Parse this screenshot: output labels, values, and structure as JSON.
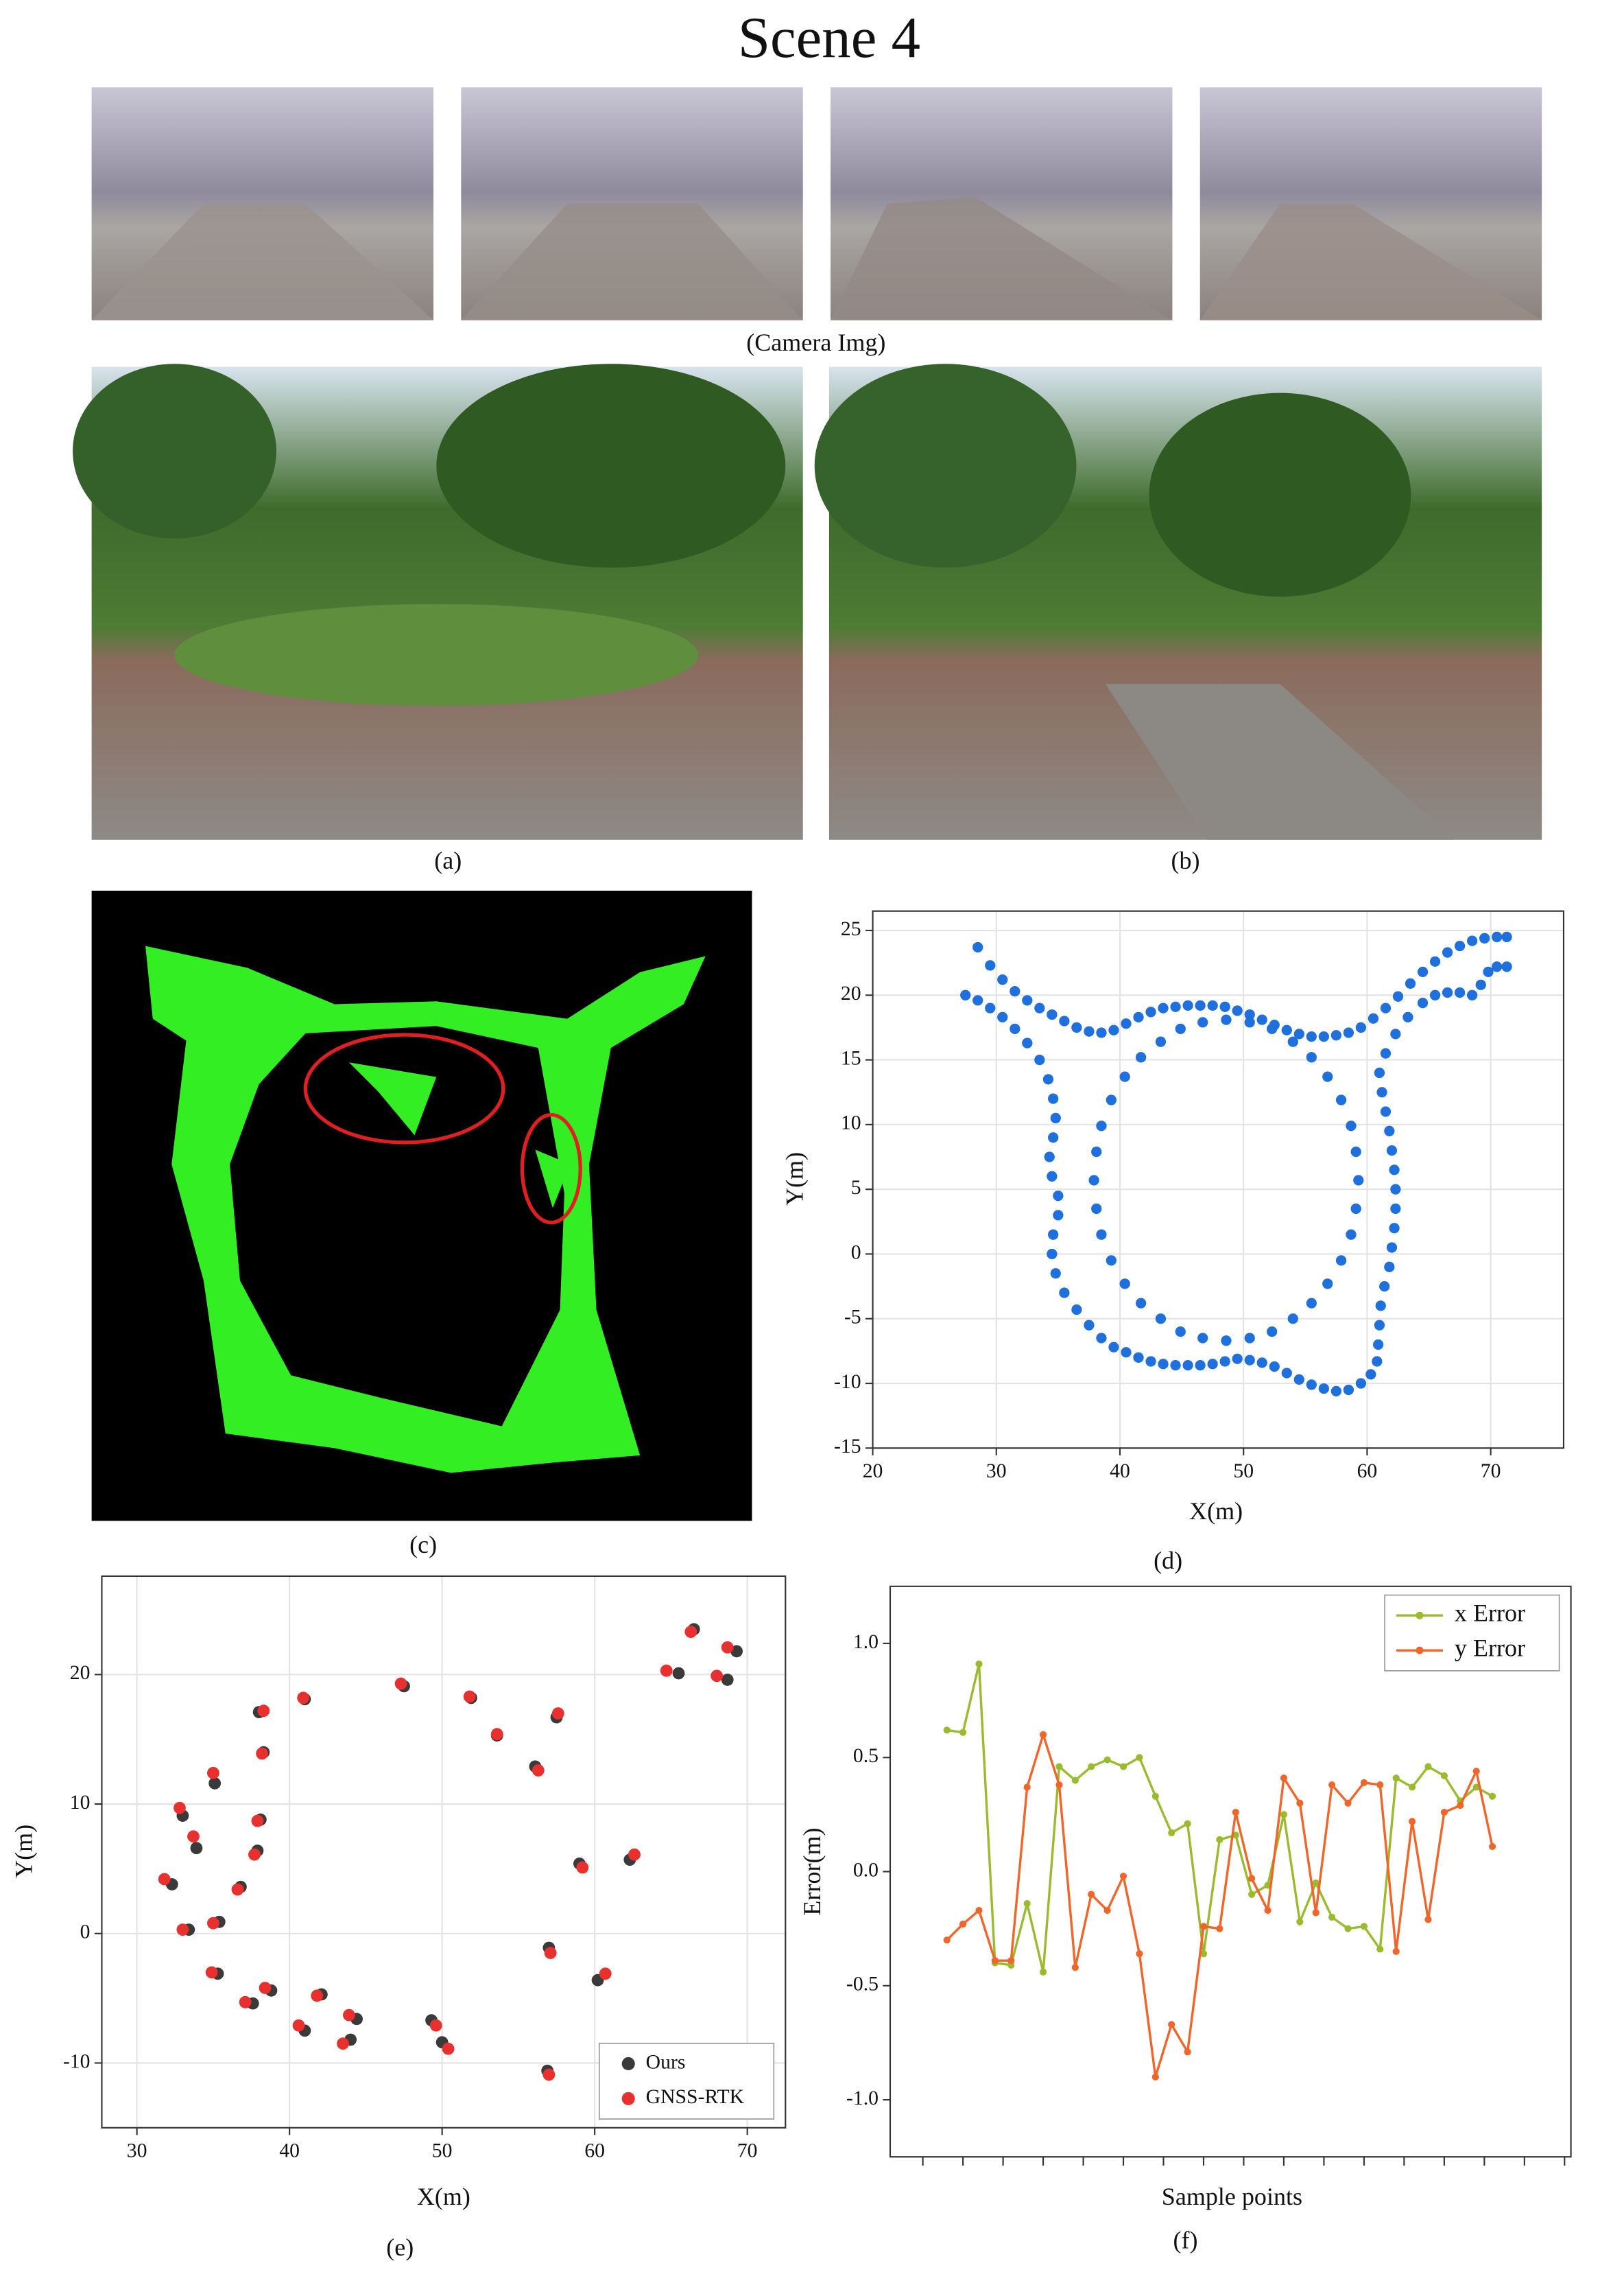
{
  "title": "Scene 4",
  "captions": {
    "camera": "(Camera Img)",
    "a": "(a)",
    "b": "(b)",
    "c": "(c)",
    "d": "(d)",
    "e": "(e)",
    "f": "(f)"
  },
  "chart_data": [
    {
      "type": "scatter",
      "x_label": "X(m)",
      "y_label": "Y(m)",
      "color": "#1f6fdc",
      "x": [
        28.5,
        29.5,
        30.5,
        31.5,
        32.5,
        33.5,
        34.5,
        35.5,
        36.5,
        37.5,
        38.5,
        39.5,
        40.5,
        41.5,
        42.5,
        43.5,
        44.5,
        45.5,
        46.5,
        47.5,
        48.5,
        49.5,
        50.5,
        51.5,
        52.5,
        53.5,
        54.5,
        55.5,
        56.5,
        57.5,
        58.5,
        59.5,
        60.5,
        61.5,
        62.5,
        63.5,
        64.5,
        65.5,
        66.5,
        67.5,
        68.5,
        69.5,
        70.5,
        71.3,
        59.3,
        59.1,
        58.7,
        57.9,
        56.8,
        55.5,
        54.0,
        52.3,
        50.5,
        48.6,
        46.7,
        44.9,
        43.3,
        41.7,
        40.4,
        39.3,
        38.5,
        38.1,
        37.9,
        38.1,
        38.5,
        39.3,
        40.4,
        41.7,
        43.3,
        44.9,
        46.7,
        48.6,
        50.5,
        52.3,
        54.0,
        55.5,
        56.8,
        57.9,
        58.7,
        59.1,
        27.5,
        28.5,
        29.5,
        30.5,
        31.5,
        32.5,
        33.5,
        34.2,
        34.6,
        34.8,
        34.6,
        34.3,
        34.5,
        35.0,
        35.0,
        34.6,
        34.5,
        34.8,
        35.5,
        36.5,
        37.5,
        38.5,
        39.5,
        40.5,
        41.5,
        42.5,
        43.5,
        44.5,
        45.5,
        46.5,
        47.5,
        48.5,
        49.5,
        50.5,
        51.5,
        52.5,
        53.5,
        54.5,
        55.5,
        56.5,
        57.5,
        58.5,
        59.5,
        60.3,
        60.8,
        60.9,
        61.0,
        61.1,
        61.4,
        61.8,
        62.0,
        62.2,
        62.3,
        62.3,
        62.2,
        62.0,
        61.8,
        61.5,
        61.2,
        61.0,
        61.5,
        62.3,
        63.3,
        64.5,
        65.5,
        66.5,
        67.5,
        68.5,
        69.2,
        69.8,
        70.5,
        71.3
      ],
      "y": [
        23.7,
        22.3,
        21.2,
        20.3,
        19.6,
        19.0,
        18.5,
        18.0,
        17.5,
        17.2,
        17.1,
        17.3,
        17.8,
        18.3,
        18.7,
        19.0,
        19.1,
        19.2,
        19.2,
        19.2,
        19.1,
        18.8,
        18.5,
        18.1,
        17.7,
        17.3,
        17.0,
        16.8,
        16.8,
        16.9,
        17.1,
        17.5,
        18.2,
        19.0,
        19.9,
        20.9,
        21.8,
        22.6,
        23.3,
        23.8,
        24.2,
        24.4,
        24.5,
        24.5,
        5.7,
        7.9,
        9.9,
        11.9,
        13.7,
        15.2,
        16.4,
        17.4,
        17.9,
        18.1,
        17.9,
        17.4,
        16.4,
        15.2,
        13.7,
        11.9,
        9.9,
        7.9,
        5.7,
        3.5,
        1.5,
        -0.5,
        -2.3,
        -3.8,
        -5.0,
        -6.0,
        -6.5,
        -6.7,
        -6.5,
        -6.0,
        -5.0,
        -3.8,
        -2.3,
        -0.5,
        1.5,
        3.5,
        20.0,
        19.6,
        19.0,
        18.3,
        17.4,
        16.3,
        15.0,
        13.5,
        12.0,
        10.5,
        9.0,
        7.5,
        6.0,
        4.5,
        3.0,
        1.5,
        0.0,
        -1.5,
        -3.0,
        -4.3,
        -5.5,
        -6.5,
        -7.2,
        -7.6,
        -8.0,
        -8.3,
        -8.5,
        -8.6,
        -8.6,
        -8.6,
        -8.5,
        -8.3,
        -8.1,
        -8.2,
        -8.4,
        -8.7,
        -9.2,
        -9.7,
        -10.1,
        -10.4,
        -10.6,
        -10.5,
        -10.0,
        -9.3,
        -8.3,
        -7.0,
        -5.5,
        -4.0,
        -2.5,
        -1.0,
        0.5,
        2.0,
        3.5,
        5.0,
        6.5,
        8.0,
        9.5,
        11.0,
        12.5,
        14.0,
        15.5,
        17.0,
        18.3,
        19.4,
        20.0,
        20.2,
        20.2,
        20.0,
        20.8,
        21.8,
        22.2,
        22.2
      ],
      "xlim": [
        20,
        75.9
      ],
      "ylim": [
        -15,
        26.5
      ],
      "xticks": [
        20,
        30,
        40,
        50,
        60,
        70
      ],
      "yticks": [
        -15,
        -10,
        -5,
        0,
        5,
        10,
        15,
        20,
        25
      ],
      "grid": true
    },
    {
      "type": "scatter",
      "x_label": "X(m)",
      "y_label": "Y(m)",
      "series": [
        {
          "name": "Ours",
          "color": "#3a3a3a",
          "x": [
            66.5,
            69.3,
            65.5,
            68.7,
            47.5,
            41.0,
            51.9,
            38.0,
            57.5,
            53.6,
            38.3,
            56.1,
            35.1,
            33.0,
            38.1,
            33.9,
            37.9,
            59.0,
            62.3,
            32.3,
            36.8,
            35.4,
            33.4,
            57.0,
            60.2,
            35.3,
            37.6,
            38.8,
            42.1,
            44.4,
            41.0,
            49.3,
            44.0,
            50.0,
            56.9
          ],
          "y": [
            23.5,
            21.8,
            20.1,
            19.6,
            19.1,
            18.1,
            18.2,
            17.1,
            16.7,
            15.3,
            14.0,
            12.9,
            11.6,
            9.1,
            8.8,
            6.6,
            6.4,
            5.4,
            5.7,
            3.8,
            3.6,
            0.9,
            0.3,
            -1.1,
            -3.6,
            -3.1,
            -5.4,
            -4.4,
            -4.7,
            -6.6,
            -7.5,
            -6.7,
            -8.2,
            -8.4,
            -10.6
          ]
        },
        {
          "name": "GNSS-RTK",
          "color": "#e8302f",
          "x": [
            66.3,
            68.7,
            64.7,
            68.0,
            47.3,
            40.9,
            51.8,
            38.3,
            57.6,
            53.6,
            38.2,
            56.3,
            35.0,
            32.8,
            37.9,
            33.7,
            37.7,
            59.2,
            62.6,
            31.8,
            36.6,
            35.0,
            33.0,
            57.1,
            60.7,
            34.9,
            37.1,
            38.4,
            41.8,
            43.9,
            40.6,
            49.6,
            43.5,
            50.4,
            57.0
          ],
          "y": [
            23.3,
            22.1,
            20.3,
            19.9,
            19.3,
            18.2,
            18.3,
            17.2,
            17.0,
            15.4,
            13.9,
            12.6,
            12.4,
            9.7,
            8.7,
            7.5,
            6.1,
            5.1,
            6.1,
            4.2,
            3.4,
            0.8,
            0.3,
            -1.5,
            -3.1,
            -3.0,
            -5.3,
            -4.2,
            -4.8,
            -6.3,
            -7.1,
            -7.1,
            -8.5,
            -8.9,
            -10.9
          ]
        }
      ],
      "xlim": [
        27.7,
        72.5
      ],
      "ylim": [
        -15,
        27.6
      ],
      "xticks": [
        30,
        40,
        50,
        60,
        70
      ],
      "yticks": [
        -10,
        0,
        10,
        20
      ],
      "grid": true,
      "legend": "lower right"
    },
    {
      "type": "line",
      "x_label": "Sample points",
      "y_label": "Error(m)",
      "series": [
        {
          "name": "x Error",
          "color": "#9bbb2f",
          "values": [
            0.62,
            0.61,
            0.91,
            -0.4,
            -0.41,
            -0.14,
            -0.44,
            0.46,
            0.4,
            0.46,
            0.49,
            0.46,
            0.5,
            0.33,
            0.17,
            0.21,
            -0.36,
            0.14,
            0.16,
            -0.1,
            -0.06,
            0.25,
            -0.22,
            -0.05,
            -0.2,
            -0.25,
            -0.24,
            -0.34,
            0.41,
            0.37,
            0.46,
            0.42,
            0.31,
            0.37,
            0.33
          ]
        },
        {
          "name": "y Error",
          "color": "#f0652a",
          "values": [
            -0.3,
            -0.23,
            -0.17,
            -0.39,
            -0.39,
            0.37,
            0.6,
            0.38,
            -0.42,
            -0.1,
            -0.17,
            -0.02,
            -0.36,
            -0.9,
            -0.67,
            -0.79,
            -0.24,
            -0.25,
            0.26,
            -0.03,
            -0.17,
            0.41,
            0.3,
            -0.18,
            0.38,
            0.3,
            0.39,
            0.38,
            -0.35,
            0.22,
            -0.21,
            0.26,
            0.29,
            0.44,
            0.11
          ]
        }
      ],
      "ylim": [
        -1.25,
        1.25
      ],
      "yticks": [
        {
          "value": 1,
          "label": "1.0"
        },
        0.5,
        {
          "value": 0,
          "label": "0.0"
        },
        -0.5,
        {
          "value": -1,
          "label": "-1.0"
        }
      ],
      "grid": false,
      "legend": "upper right"
    }
  ]
}
